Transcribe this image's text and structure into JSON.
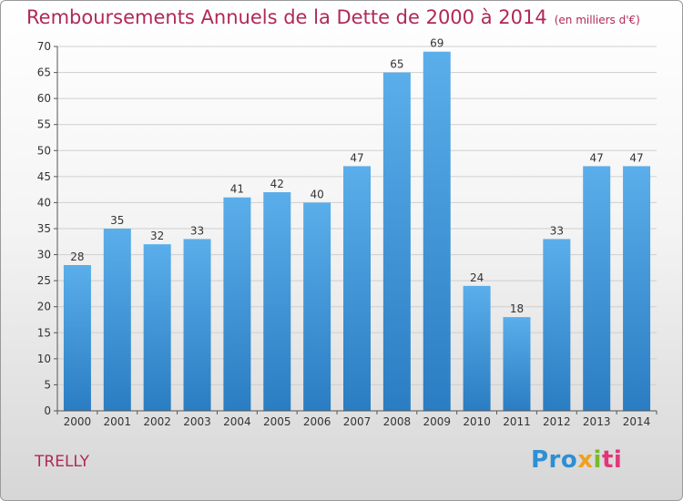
{
  "chart_data": {
    "type": "bar",
    "title": "Remboursements Annuels de la Dette de 2000 à 2014",
    "unit_label": "(en milliers d'€)",
    "categories": [
      "2000",
      "2001",
      "2002",
      "2003",
      "2004",
      "2005",
      "2006",
      "2007",
      "2008",
      "2009",
      "2010",
      "2011",
      "2012",
      "2013",
      "2014"
    ],
    "values": [
      28,
      35,
      32,
      33,
      41,
      42,
      40,
      47,
      65,
      69,
      24,
      18,
      33,
      47,
      47
    ],
    "ylim": [
      0,
      70
    ],
    "yticks": [
      0,
      5,
      10,
      15,
      20,
      25,
      30,
      35,
      40,
      45,
      50,
      55,
      60,
      65,
      70
    ],
    "grid": true,
    "xlabel": "",
    "ylabel": "",
    "bar_color": "#2f85cc"
  },
  "commune": "TRELLY",
  "logo": {
    "p1": "Pro",
    "p2": "x",
    "p3": "i",
    "p4": "ti"
  },
  "colors": {
    "title": "#b0285a",
    "bar_top": "#5aaeea",
    "bar_bottom": "#2a7dc2"
  }
}
